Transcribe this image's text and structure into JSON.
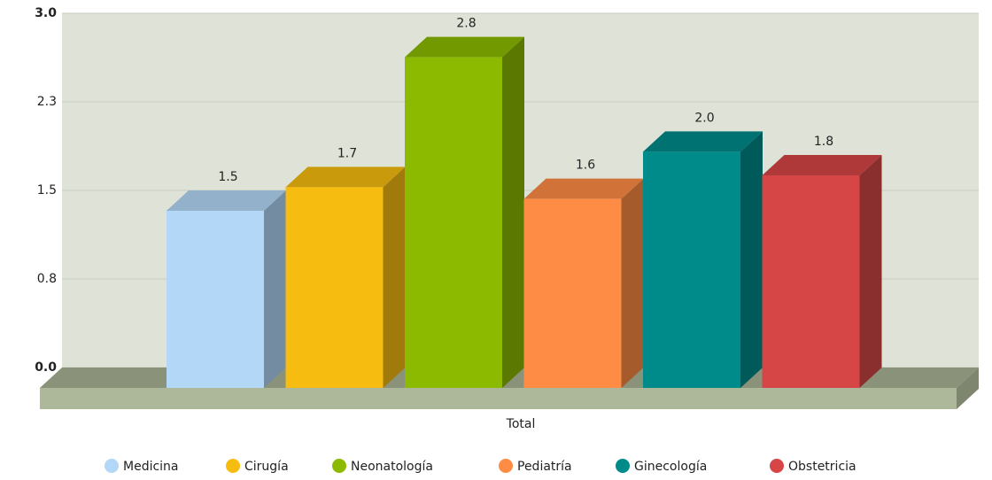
{
  "chart_data": {
    "type": "bar",
    "categories": [
      "Total"
    ],
    "series": [
      {
        "name": "Medicina",
        "color": "#b3d8f7",
        "values": [
          1.5
        ]
      },
      {
        "name": "Cirugía",
        "color": "#f6bc10",
        "values": [
          1.7
        ]
      },
      {
        "name": "Neonatología",
        "color": "#8cba00",
        "values": [
          2.8
        ]
      },
      {
        "name": "Pediatría",
        "color": "#ff8c45",
        "values": [
          1.6
        ]
      },
      {
        "name": "Ginecología",
        "color": "#008b8b",
        "values": [
          2.0
        ],
        "value_labels": [
          "2.0"
        ]
      },
      {
        "name": "Obstetricia",
        "color": "#d64646",
        "values": [
          1.8
        ]
      }
    ],
    "ylim": [
      0,
      3
    ],
    "yticks": [
      {
        "value": 0,
        "label": "0.0"
      },
      {
        "value": 0.75,
        "label": "0.8"
      },
      1.5,
      {
        "value": 2.25,
        "label": "2.3"
      },
      {
        "value": 3,
        "label": "3.0"
      }
    ],
    "grid": true,
    "legend": "bottom"
  }
}
